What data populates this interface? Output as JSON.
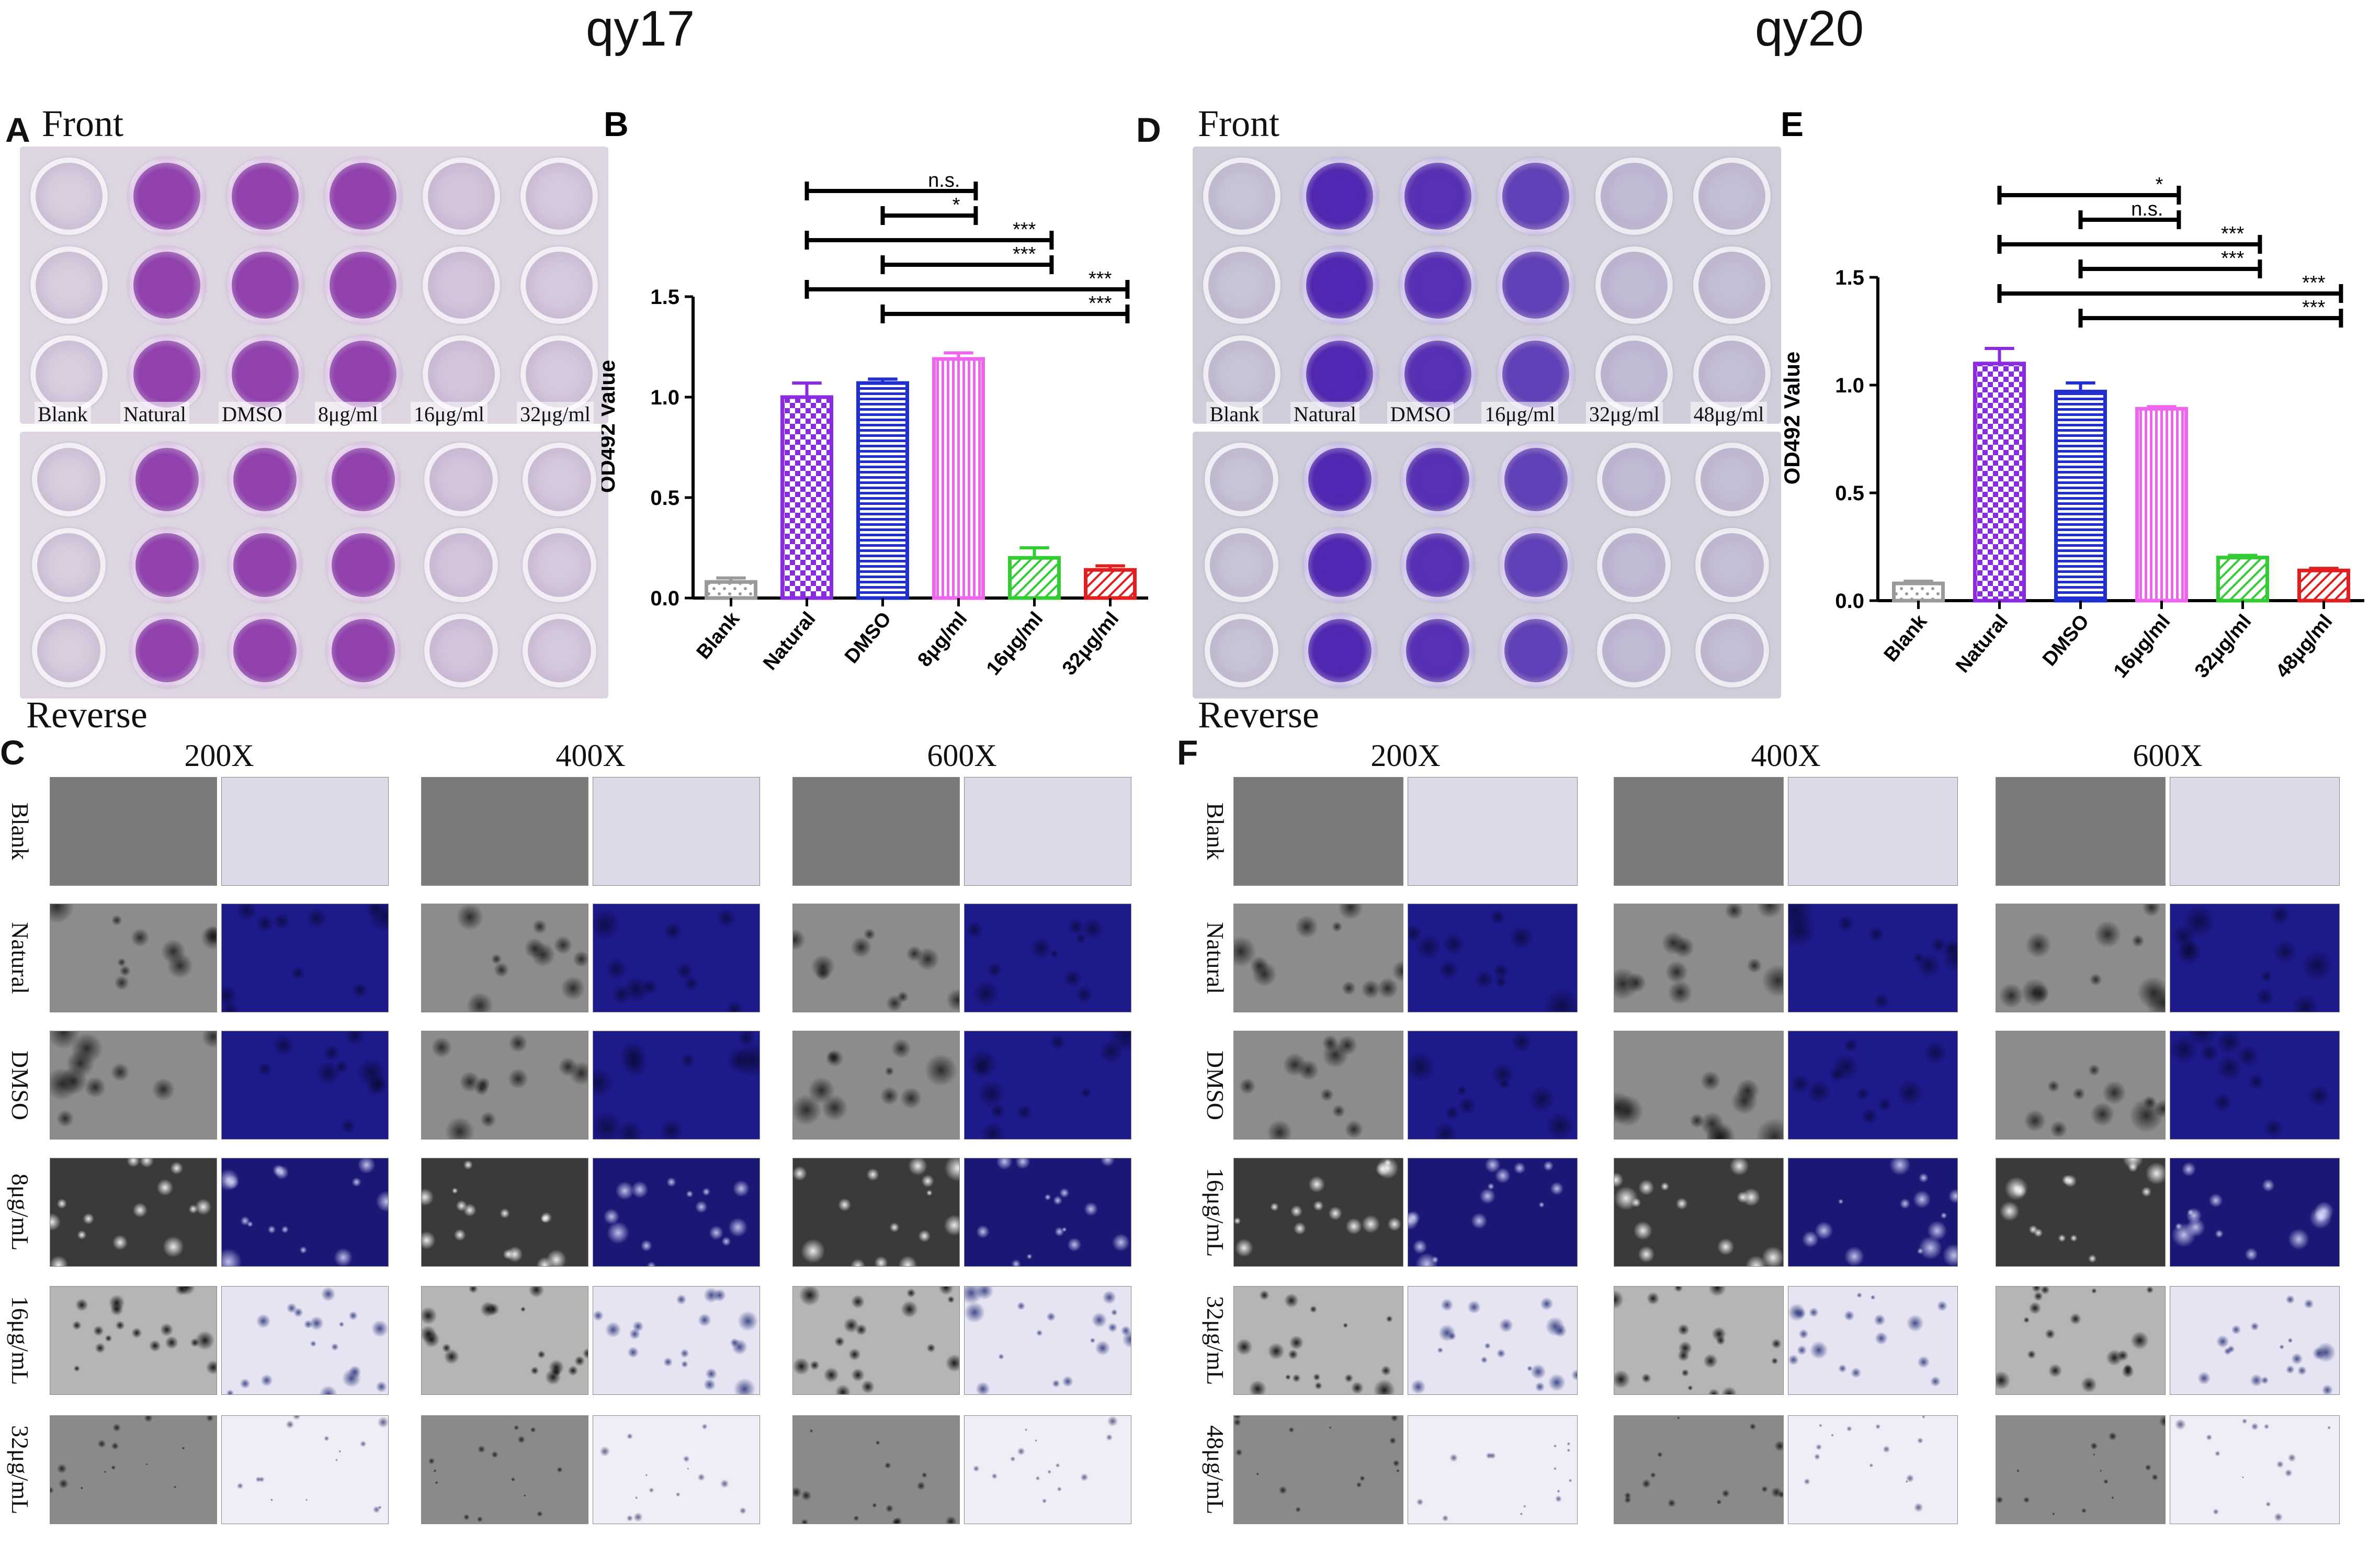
{
  "figure": {
    "titles": {
      "left": "qy17",
      "right": "qy20"
    },
    "panels": {
      "A": {
        "letter": "A",
        "front_label": "Front",
        "reverse_label": "Reverse",
        "well_labels": [
          "Blank",
          "Natural",
          "DMSO",
          "8μg/ml",
          "16μg/ml",
          "32μg/ml"
        ]
      },
      "D": {
        "letter": "D",
        "front_label": "Front",
        "reverse_label": "Reverse",
        "well_labels": [
          "Blank",
          "Natural",
          "DMSO",
          "16μg/ml",
          "32μg/ml",
          "48μg/ml"
        ]
      },
      "C": {
        "letter": "C",
        "magnifications": [
          "200X",
          "400X",
          "600X"
        ],
        "row_labels": [
          "Blank",
          "Natural",
          "DMSO",
          "8μg/mL",
          "16μg/mL",
          "32μg/mL"
        ]
      },
      "F": {
        "letter": "F",
        "magnifications": [
          "200X",
          "400X",
          "600X"
        ],
        "row_labels": [
          "Blank",
          "Natural",
          "DMSO",
          "16μg/mL",
          "32μg/mL",
          "48μg/mL"
        ]
      }
    }
  },
  "chart_data": [
    {
      "panel": "B",
      "letter": "B",
      "type": "bar",
      "title": "",
      "xlabel": "",
      "ylabel": "OD492 Value",
      "ylim": [
        0,
        1.5
      ],
      "yticks": [
        "0.0",
        "0.5",
        "1.0",
        "1.5"
      ],
      "categories": [
        "Blank",
        "Natural",
        "DMSO",
        "8μg/ml",
        "16μg/ml",
        "32μg/ml"
      ],
      "values": [
        0.08,
        1.0,
        1.07,
        1.19,
        0.2,
        0.14
      ],
      "errors": [
        0.02,
        0.07,
        0.02,
        0.03,
        0.05,
        0.02
      ],
      "colors": [
        "#9a9a9a",
        "#8a2be2",
        "#1f2fd0",
        "#ee66ee",
        "#33cc33",
        "#e02020"
      ],
      "patterns": [
        "dots",
        "checker",
        "hstripe",
        "vstripe",
        "diag",
        "diag"
      ],
      "significance": [
        {
          "from": 1,
          "to": 3,
          "label": "n.s."
        },
        {
          "from": 2,
          "to": 3,
          "label": "*"
        },
        {
          "from": 1,
          "to": 4,
          "label": "***"
        },
        {
          "from": 2,
          "to": 4,
          "label": "***"
        },
        {
          "from": 1,
          "to": 5,
          "label": "***"
        },
        {
          "from": 2,
          "to": 5,
          "label": "***"
        }
      ]
    },
    {
      "panel": "E",
      "letter": "E",
      "type": "bar",
      "title": "",
      "xlabel": "",
      "ylabel": "OD492 Value",
      "ylim": [
        0,
        1.5
      ],
      "yticks": [
        "0.0",
        "0.5",
        "1.0",
        "1.5"
      ],
      "categories": [
        "Blank",
        "Natural",
        "DMSO",
        "16μg/ml",
        "32μg/ml",
        "48μg/ml"
      ],
      "values": [
        0.08,
        1.1,
        0.97,
        0.89,
        0.2,
        0.14
      ],
      "errors": [
        0.01,
        0.07,
        0.04,
        0.01,
        0.01,
        0.01
      ],
      "colors": [
        "#9a9a9a",
        "#8a2be2",
        "#1f2fd0",
        "#ee66ee",
        "#33cc33",
        "#e02020"
      ],
      "patterns": [
        "dots",
        "checker",
        "hstripe",
        "vstripe",
        "diag",
        "diag"
      ],
      "significance": [
        {
          "from": 1,
          "to": 3,
          "label": "*"
        },
        {
          "from": 2,
          "to": 3,
          "label": "n.s."
        },
        {
          "from": 1,
          "to": 4,
          "label": "***"
        },
        {
          "from": 2,
          "to": 4,
          "label": "***"
        },
        {
          "from": 1,
          "to": 5,
          "label": "***"
        },
        {
          "from": 2,
          "to": 5,
          "label": "***"
        }
      ]
    }
  ]
}
